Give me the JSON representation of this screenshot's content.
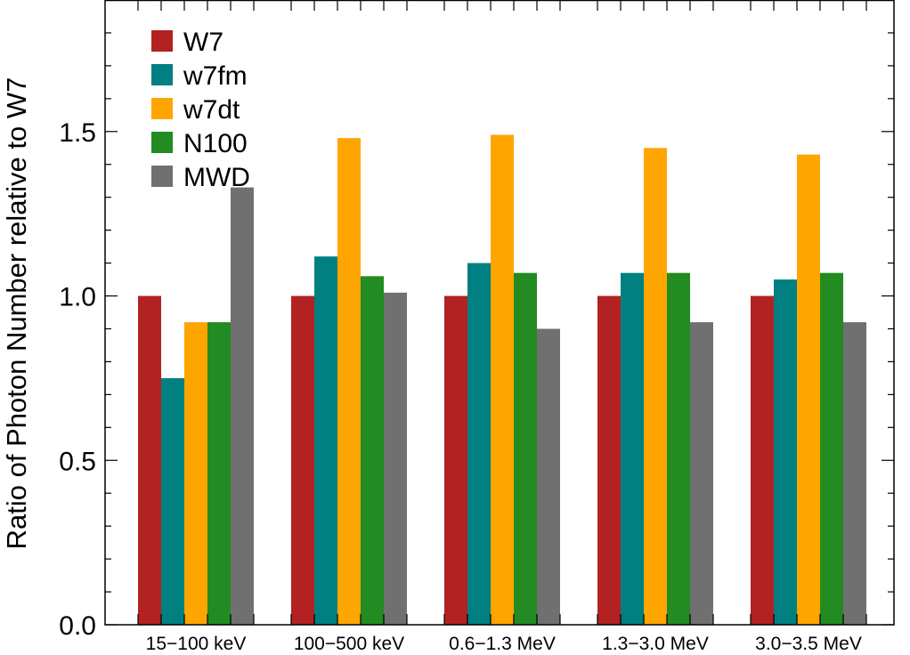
{
  "chart_data": {
    "type": "bar",
    "title": "",
    "xlabel": "",
    "ylabel": "Ratio of Photon Number relative to W7",
    "ylim": [
      0.0,
      1.9
    ],
    "yticks": [
      0.0,
      0.5,
      1.0,
      1.5
    ],
    "ytick_labels": [
      "0.0",
      "0.5",
      "1.0",
      "1.5"
    ],
    "ytick_minor_step": 0.1,
    "grid": false,
    "legend_position": "top-left",
    "categories": [
      "15−100 keV",
      "100−500 keV",
      "0.6−1.3 MeV",
      "1.3−3.0 MeV",
      "3.0−3.5 MeV"
    ],
    "series": [
      {
        "name": "W7",
        "color": "#b22222",
        "values": [
          1.0,
          1.0,
          1.0,
          1.0,
          1.0
        ]
      },
      {
        "name": "w7fm",
        "color": "#008080",
        "values": [
          0.75,
          1.12,
          1.1,
          1.07,
          1.05
        ]
      },
      {
        "name": "w7dt",
        "color": "#ffa500",
        "values": [
          0.92,
          1.48,
          1.49,
          1.45,
          1.43
        ]
      },
      {
        "name": "N100",
        "color": "#228b22",
        "values": [
          0.92,
          1.06,
          1.07,
          1.07,
          1.07
        ]
      },
      {
        "name": "MWD",
        "color": "#707070",
        "values": [
          1.33,
          1.01,
          0.9,
          0.92,
          0.92
        ]
      }
    ]
  }
}
